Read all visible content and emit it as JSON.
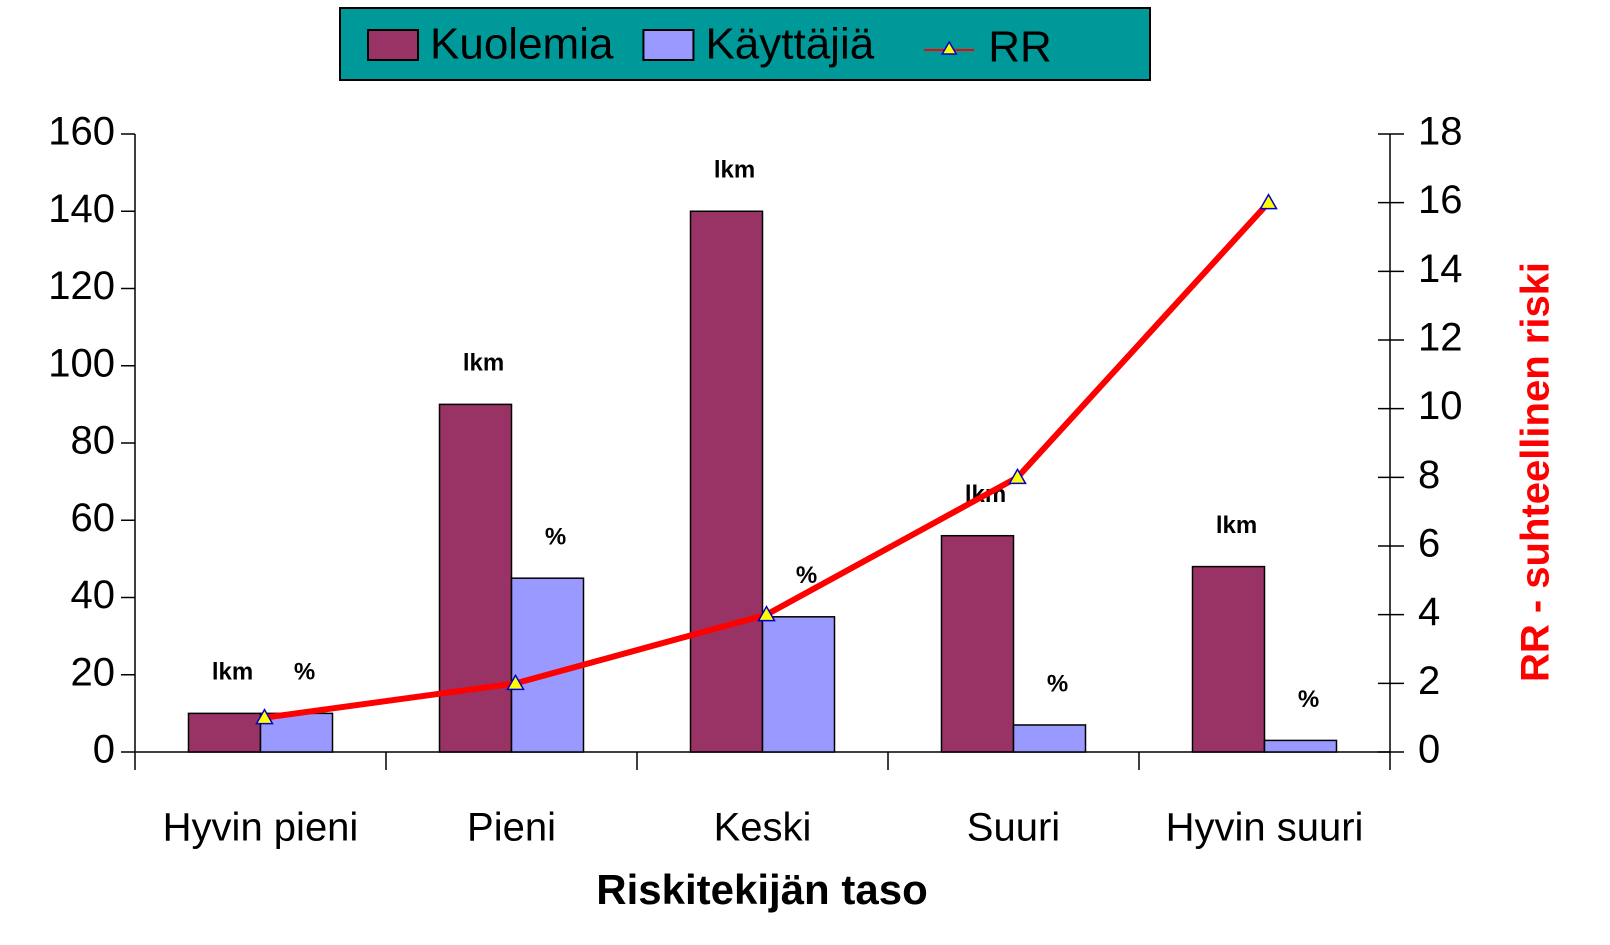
{
  "chart_data": {
    "type": "bar",
    "x_label": "Riskitekijän taso",
    "y2_label": "RR - suhteellinen riski",
    "categories": [
      "Hyvin pieni",
      "Pieni",
      "Keski",
      "Suuri",
      "Hyvin suuri"
    ],
    "series": [
      {
        "name": "Kuolemia",
        "type": "bar",
        "color": "#993366",
        "values": [
          10,
          90,
          140,
          56,
          48
        ],
        "value_labels": [
          "lkm",
          "lkm",
          "lkm",
          "lkm",
          "lkm"
        ]
      },
      {
        "name": "Käyttäjiä",
        "type": "bar",
        "color": "#9999ff",
        "values": [
          10,
          45,
          35,
          7,
          3
        ],
        "value_labels": [
          "%",
          "%",
          "%",
          "%",
          "%"
        ]
      },
      {
        "name": "RR",
        "type": "line",
        "axis": "y2",
        "color": "#ff0000",
        "marker_color": "#ffff00",
        "values": [
          1,
          2,
          4,
          8,
          16
        ]
      }
    ],
    "ylim": [
      0,
      160
    ],
    "yticks": [
      0,
      20,
      40,
      60,
      80,
      100,
      120,
      140,
      160
    ],
    "y2lim": [
      0,
      18
    ],
    "y2ticks": [
      0,
      2,
      4,
      6,
      8,
      10,
      12,
      14,
      16,
      18
    ],
    "legend": "top",
    "legend_color": "#009999",
    "y2_label_color": "#ff0000"
  }
}
